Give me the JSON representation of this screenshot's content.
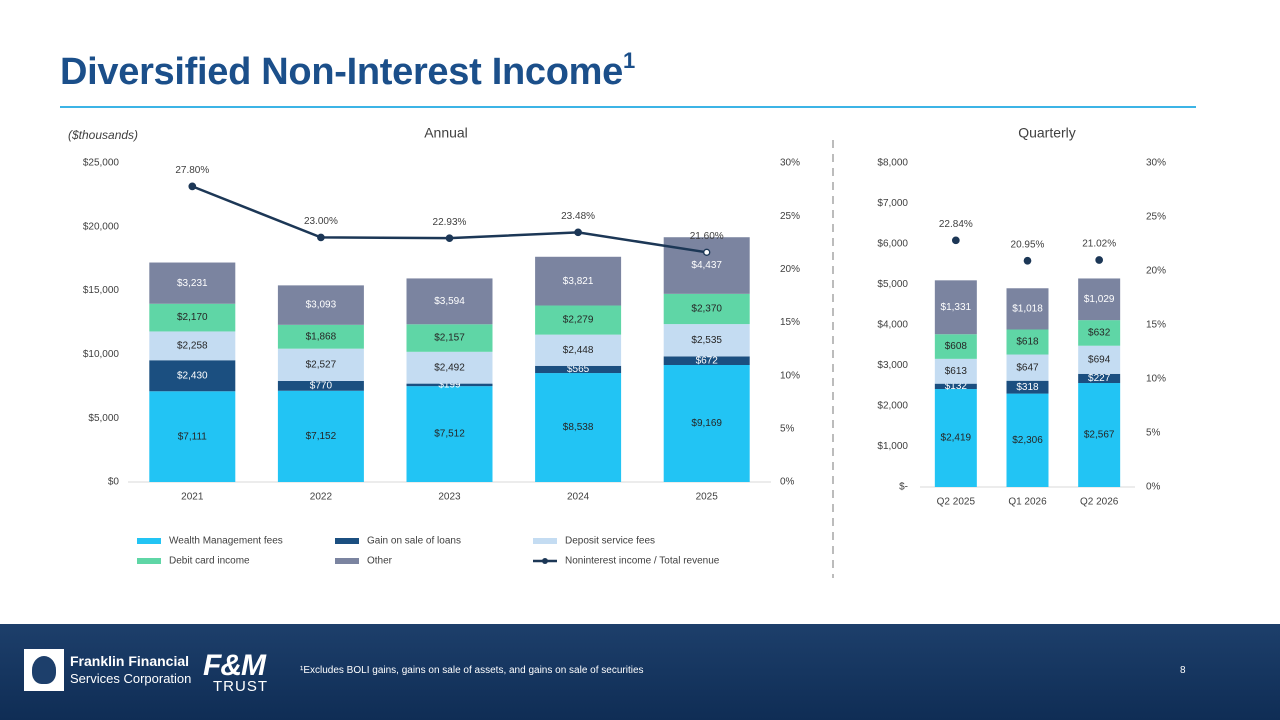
{
  "slide": {
    "title": "Diversified Non-Interest Income",
    "title_superscript": "1",
    "units_note": "($thousands)",
    "footnote": "¹Excludes BOLI gains, gains on sale of assets, and gains on sale of securities",
    "page_number": "8",
    "logos": {
      "franklin_line1": "Franklin Financial",
      "franklin_line2": "Services Corporation",
      "fm": "F&M",
      "trust": "TRUST"
    }
  },
  "colors": {
    "wealth": "#22c4f4",
    "gain": "#1b4f80",
    "deposit": "#c4dcf2",
    "debit": "#5fd6a6",
    "other": "#7b84a0",
    "line": "#1c3756"
  },
  "chart_data": [
    {
      "type": "bar",
      "stacked": true,
      "title": "Annual",
      "categories": [
        "2021",
        "2022",
        "2023",
        "2024",
        "2025"
      ],
      "series": [
        {
          "name": "Wealth Management fees",
          "values": [
            7111,
            7152,
            7512,
            8538,
            9169
          ],
          "labels": [
            "$7,111",
            "$7,152",
            "$7,512",
            "$8,538",
            "$9,169"
          ]
        },
        {
          "name": "Gain on sale of loans",
          "values": [
            2430,
            770,
            199,
            565,
            672
          ],
          "labels": [
            "$2,430",
            "$770",
            "$199",
            "$565",
            "$672"
          ]
        },
        {
          "name": "Deposit service fees",
          "values": [
            2258,
            2527,
            2492,
            2448,
            2535
          ],
          "labels": [
            "$2,258",
            "$2,527",
            "$2,492",
            "$2,448",
            "$2,535"
          ]
        },
        {
          "name": "Debit card income",
          "values": [
            2170,
            1868,
            2157,
            2279,
            2370
          ],
          "labels": [
            "$2,170",
            "$1,868",
            "$2,157",
            "$2,279",
            "$2,370"
          ]
        },
        {
          "name": "Other",
          "values": [
            3231,
            3093,
            3594,
            3821,
            4437
          ],
          "labels": [
            "$3,231",
            "$3,093",
            "$3,594",
            "$3,821",
            "$4,437"
          ]
        }
      ],
      "ratio": {
        "name": "Noninterest income / Total revenue",
        "values": [
          27.8,
          23.0,
          22.93,
          23.48,
          21.6
        ],
        "labels": [
          "27.80%",
          "23.00%",
          "22.93%",
          "23.48%",
          "21.60%"
        ]
      },
      "y_left": {
        "min": 0,
        "max": 25000,
        "ticks": [
          "$0",
          "$5,000",
          "$10,000",
          "$15,000",
          "$20,000",
          "$25,000"
        ]
      },
      "y_right": {
        "min": 0,
        "max": 30,
        "ticks": [
          "0%",
          "5%",
          "10%",
          "15%",
          "20%",
          "25%",
          "30%"
        ]
      },
      "legend": "bottom"
    },
    {
      "type": "bar",
      "stacked": true,
      "title": "Quarterly",
      "categories": [
        "Q2 2025",
        "Q1 2026",
        "Q2 2026"
      ],
      "series": [
        {
          "name": "Wealth Management fees",
          "values": [
            2419,
            2306,
            2567
          ],
          "labels": [
            "$2,419",
            "$2,306",
            "$2,567"
          ]
        },
        {
          "name": "Gain on sale of loans",
          "values": [
            132,
            318,
            227
          ],
          "labels": [
            "$132",
            "$318",
            "$227"
          ]
        },
        {
          "name": "Deposit service fees",
          "values": [
            613,
            647,
            694
          ],
          "labels": [
            "$613",
            "$647",
            "$694"
          ]
        },
        {
          "name": "Debit card income",
          "values": [
            608,
            618,
            632
          ],
          "labels": [
            "$608",
            "$618",
            "$632"
          ]
        },
        {
          "name": "Other",
          "values": [
            1331,
            1018,
            1029
          ],
          "labels": [
            "$1,331",
            "$1,018",
            "$1,029"
          ]
        }
      ],
      "ratio": {
        "name": "Noninterest income / Total revenue",
        "values": [
          22.84,
          20.95,
          21.02
        ],
        "labels": [
          "22.84%",
          "20.95%",
          "21.02%"
        ]
      },
      "y_left": {
        "min": 0,
        "max": 8000,
        "ticks": [
          "$-",
          "$1,000",
          "$2,000",
          "$3,000",
          "$4,000",
          "$5,000",
          "$6,000",
          "$7,000",
          "$8,000"
        ]
      },
      "y_right": {
        "min": 0,
        "max": 30,
        "ticks": [
          "0%",
          "5%",
          "10%",
          "15%",
          "20%",
          "25%",
          "30%"
        ]
      }
    }
  ]
}
